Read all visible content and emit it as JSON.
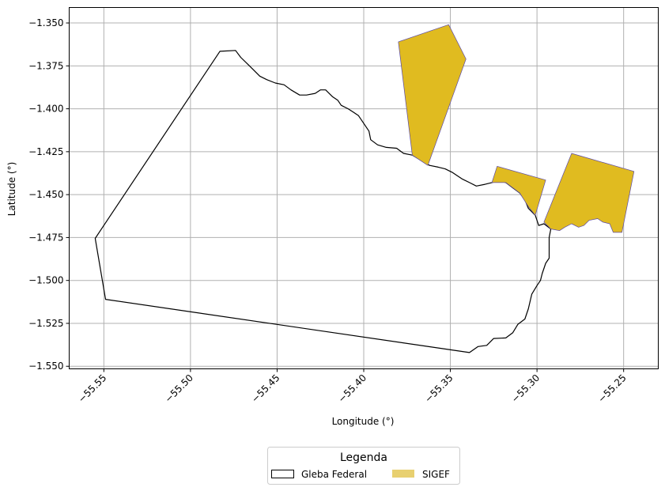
{
  "chart_data": {
    "type": "map",
    "xlabel": "Longitude (°)",
    "ylabel": "Latitude (°)",
    "xlim": [
      -55.57,
      -55.23
    ],
    "ylim": [
      -1.5515,
      -1.341
    ],
    "xticks": [
      -55.55,
      -55.5,
      -55.45,
      -55.4,
      -55.35,
      -55.3,
      -55.25
    ],
    "xtick_labels": [
      "−55.55",
      "−55.50",
      "−55.45",
      "−55.40",
      "−55.35",
      "−55.30",
      "−55.25"
    ],
    "yticks": [
      -1.35,
      -1.375,
      -1.4,
      -1.425,
      -1.45,
      -1.475,
      -1.5,
      -1.525,
      -1.55
    ],
    "ytick_labels": [
      "−1.350",
      "−1.375",
      "−1.400",
      "−1.425",
      "−1.450",
      "−1.475",
      "−1.500",
      "−1.525",
      "−1.550"
    ],
    "grid": true,
    "legend": {
      "title": "Legenda",
      "placement": "bottom-center",
      "entries": [
        "Gleba Federal",
        "SIGEF"
      ]
    },
    "colors": {
      "gleba_edge": "#000000",
      "sigef_fill": "#e0bb20",
      "sigef_edge": "#5b4aa8",
      "legend_sigef": "#e8d070",
      "grid": "#b0b0b0"
    },
    "layers": [
      {
        "name": "Gleba Federal",
        "style": "outline",
        "polygons": [
          [
            [
              -55.555,
              -1.4755
            ],
            [
              -55.549,
              -1.511
            ],
            [
              -55.339,
              -1.542
            ],
            [
              -55.334,
              -1.5385
            ],
            [
              -55.329,
              -1.5378
            ],
            [
              -55.325,
              -1.5338
            ],
            [
              -55.318,
              -1.5335
            ],
            [
              -55.314,
              -1.5305
            ],
            [
              -55.311,
              -1.5255
            ],
            [
              -55.307,
              -1.5225
            ],
            [
              -55.305,
              -1.5165
            ],
            [
              -55.303,
              -1.508
            ],
            [
              -55.3,
              -1.503
            ],
            [
              -55.298,
              -1.5
            ],
            [
              -55.297,
              -1.496
            ],
            [
              -55.295,
              -1.49
            ],
            [
              -55.293,
              -1.487
            ],
            [
              -55.293,
              -1.482
            ],
            [
              -55.293,
              -1.475
            ],
            [
              -55.292,
              -1.47
            ],
            [
              -55.296,
              -1.467
            ],
            [
              -55.299,
              -1.468
            ],
            [
              -55.301,
              -1.462
            ],
            [
              -55.305,
              -1.458
            ],
            [
              -55.307,
              -1.453
            ],
            [
              -55.31,
              -1.449
            ],
            [
              -55.314,
              -1.446
            ],
            [
              -55.318,
              -1.443
            ],
            [
              -55.322,
              -1.442
            ],
            [
              -55.326,
              -1.443
            ],
            [
              -55.33,
              -1.444
            ],
            [
              -55.335,
              -1.445
            ],
            [
              -55.339,
              -1.443
            ],
            [
              -55.343,
              -1.441
            ],
            [
              -55.346,
              -1.439
            ],
            [
              -55.349,
              -1.437
            ],
            [
              -55.353,
              -1.435
            ],
            [
              -55.357,
              -1.434
            ],
            [
              -55.362,
              -1.433
            ],
            [
              -55.367,
              -1.43
            ],
            [
              -55.372,
              -1.427
            ],
            [
              -55.377,
              -1.426
            ],
            [
              -55.381,
              -1.423
            ],
            [
              -55.387,
              -1.4225
            ],
            [
              -55.392,
              -1.421
            ],
            [
              -55.396,
              -1.418
            ],
            [
              -55.397,
              -1.413
            ],
            [
              -55.399,
              -1.41
            ],
            [
              -55.401,
              -1.407
            ],
            [
              -55.403,
              -1.404
            ],
            [
              -55.406,
              -1.402
            ],
            [
              -55.409,
              -1.4
            ],
            [
              -55.413,
              -1.398
            ],
            [
              -55.415,
              -1.395
            ],
            [
              -55.418,
              -1.393
            ],
            [
              -55.42,
              -1.391
            ],
            [
              -55.422,
              -1.389
            ],
            [
              -55.425,
              -1.389
            ],
            [
              -55.428,
              -1.391
            ],
            [
              -55.433,
              -1.392
            ],
            [
              -55.437,
              -1.392
            ],
            [
              -55.442,
              -1.389
            ],
            [
              -55.446,
              -1.386
            ],
            [
              -55.451,
              -1.385
            ],
            [
              -55.456,
              -1.383
            ],
            [
              -55.46,
              -1.381
            ],
            [
              -55.463,
              -1.378
            ],
            [
              -55.467,
              -1.374
            ],
            [
              -55.471,
              -1.37
            ],
            [
              -55.474,
              -1.366
            ],
            [
              -55.483,
              -1.3665
            ],
            [
              -55.555,
              -1.4755
            ]
          ]
        ]
      },
      {
        "name": "SIGEF",
        "style": "filled",
        "polygons": [
          [
            [
              -55.38,
              -1.361
            ],
            [
              -55.351,
              -1.351
            ],
            [
              -55.341,
              -1.371
            ],
            [
              -55.363,
              -1.433
            ],
            [
              -55.372,
              -1.427
            ],
            [
              -55.38,
              -1.361
            ]
          ],
          [
            [
              -55.323,
              -1.4335
            ],
            [
              -55.295,
              -1.4415
            ],
            [
              -55.301,
              -1.462
            ],
            [
              -55.305,
              -1.457
            ],
            [
              -55.31,
              -1.449
            ],
            [
              -55.318,
              -1.443
            ],
            [
              -55.326,
              -1.443
            ],
            [
              -55.323,
              -1.4335
            ]
          ],
          [
            [
              -55.28,
              -1.426
            ],
            [
              -55.244,
              -1.4365
            ],
            [
              -55.251,
              -1.472
            ],
            [
              -55.256,
              -1.472
            ],
            [
              -55.258,
              -1.467
            ],
            [
              -55.262,
              -1.466
            ],
            [
              -55.265,
              -1.464
            ],
            [
              -55.27,
              -1.465
            ],
            [
              -55.273,
              -1.468
            ],
            [
              -55.276,
              -1.469
            ],
            [
              -55.28,
              -1.467
            ],
            [
              -55.284,
              -1.469
            ],
            [
              -55.287,
              -1.471
            ],
            [
              -55.292,
              -1.47
            ],
            [
              -55.296,
              -1.466
            ],
            [
              -55.28,
              -1.426
            ]
          ]
        ]
      }
    ]
  }
}
